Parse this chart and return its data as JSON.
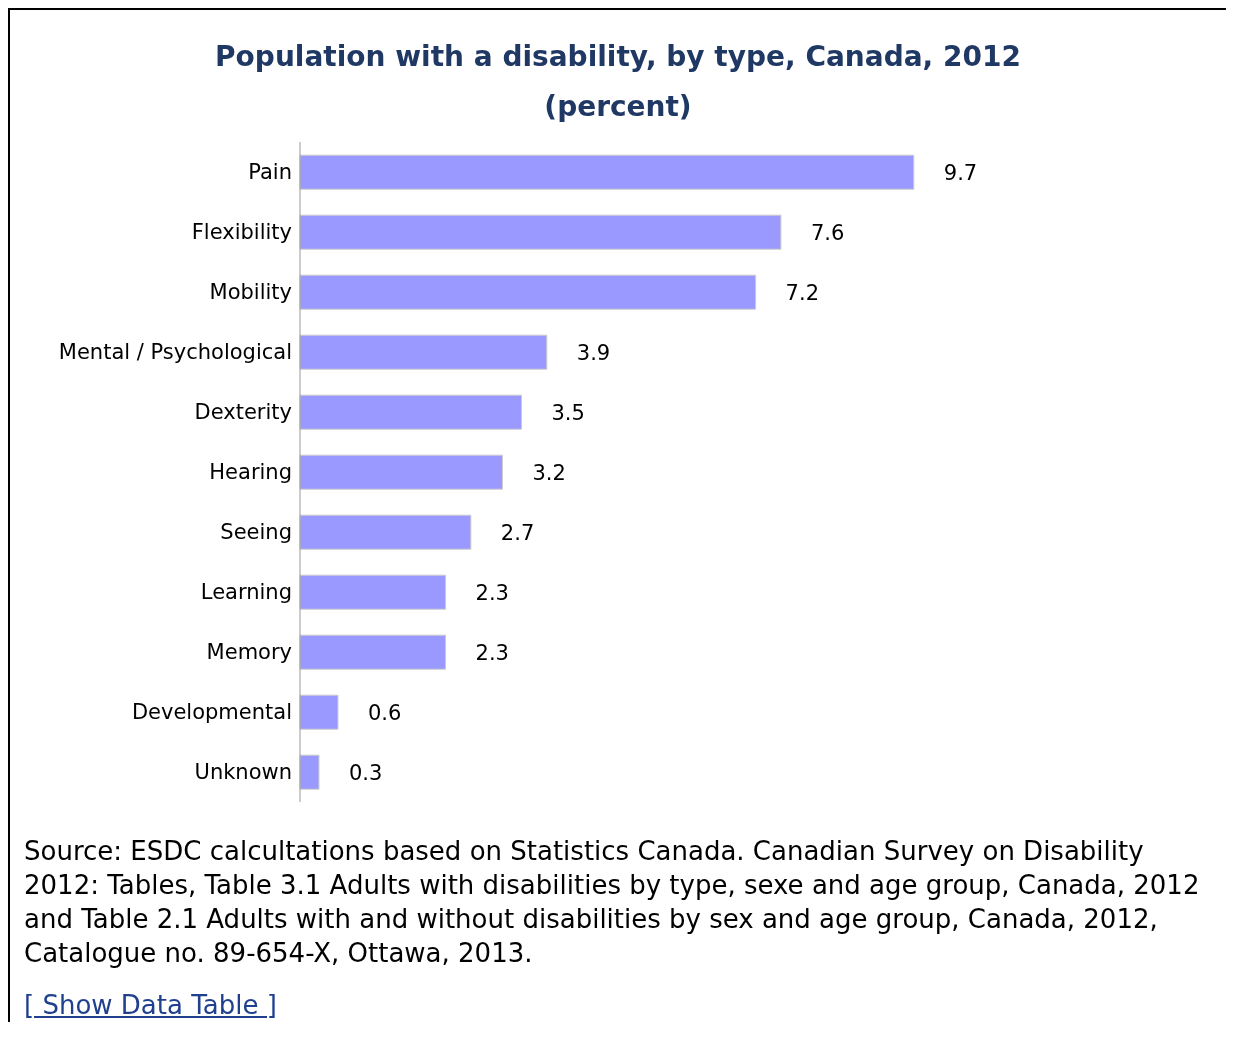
{
  "chart_data": {
    "type": "bar",
    "orientation": "horizontal",
    "title": "Population with a disability, by type, Canada, 2012",
    "subtitle": "(percent)",
    "categories": [
      "Pain",
      "Flexibility",
      "Mobility",
      "Mental / Psychological",
      "Dexterity",
      "Hearing",
      "Seeing",
      "Learning",
      "Memory",
      "Developmental",
      "Unknown"
    ],
    "values": [
      9.7,
      7.6,
      7.2,
      3.9,
      3.5,
      3.2,
      2.7,
      2.3,
      2.3,
      0.6,
      0.3
    ],
    "color": "#9999ff",
    "data_labels": true,
    "tick_labels": "y",
    "grid": false,
    "legend": false,
    "annotations": [
      "Source: ESDC calcultations based on Statistics Canada. Canadian Survey on Disability 2012: Tables, Table 3.1 Adults with disabilities by type, sexe and age group, Canada, 2012 and Table 2.1 Adults with and without disabilities by sex and age group, Canada, 2012, Catalogue no. 89-654-X, Ottawa, 2013.",
      "[ Show Data Table ]"
    ]
  }
}
